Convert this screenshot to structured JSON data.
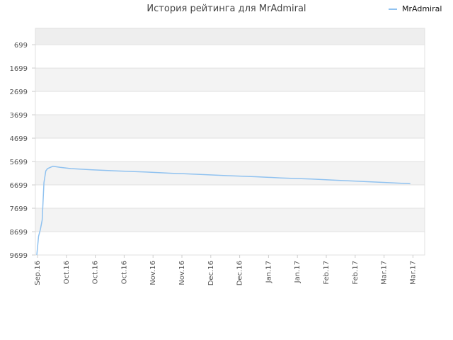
{
  "chart_data": {
    "type": "line",
    "title": "История рейтинга для MrAdmiral",
    "xlabel": "",
    "ylabel": "",
    "y_axis_inverted": true,
    "ylim": [
      9699,
      0
    ],
    "yticks": [
      699,
      1699,
      2699,
      3699,
      4699,
      5699,
      6699,
      7699,
      8699,
      9699
    ],
    "x_ticks": [
      "Sep.16",
      "Oct.16",
      "Oct.16",
      "Oct.16",
      "Nov.16",
      "Nov.16",
      "Dec.16",
      "Dec.16",
      "Jan.17",
      "Jan.17",
      "Feb.17",
      "Feb.17",
      "Mar.17",
      "Mar.17"
    ],
    "legend_position": "top-right",
    "grid": true,
    "series": [
      {
        "name": "MrAdmiral",
        "color": "#90c2f0",
        "x": [
          "2016-09-01",
          "2016-09-02",
          "2016-09-03",
          "2016-09-04",
          "2016-09-05",
          "2016-09-06",
          "2016-09-07",
          "2016-09-10",
          "2016-09-14",
          "2016-09-20",
          "2016-10-01",
          "2016-10-15",
          "2016-11-01",
          "2016-11-15",
          "2016-12-01",
          "2016-12-15",
          "2017-01-01",
          "2017-01-15",
          "2017-02-01",
          "2017-02-15",
          "2017-03-01",
          "2017-03-15",
          "2017-03-28"
        ],
        "y": [
          9699,
          8900,
          8600,
          8200,
          6600,
          6100,
          6000,
          5900,
          5950,
          6000,
          6050,
          6100,
          6150,
          6200,
          6250,
          6300,
          6350,
          6400,
          6450,
          6500,
          6550,
          6600,
          6650
        ]
      }
    ]
  }
}
